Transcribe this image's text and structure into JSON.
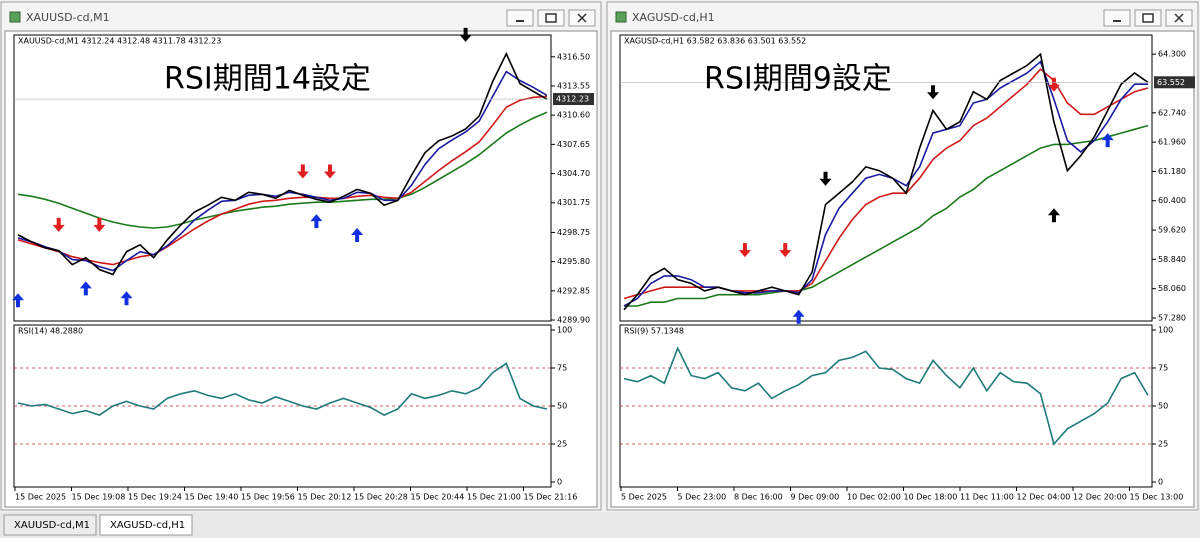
{
  "windows": [
    {
      "title": "XAUUSD-cd,M1",
      "header": "XAUUSD-cd,M1  4312.24 4312.48 4311.78 4312.23",
      "overlay": "RSI期間14設定",
      "price": {
        "ylim": [
          4289.8,
          4318.7
        ],
        "yticks": [
          {
            "value": 4316.5,
            "label": "4316.50"
          },
          {
            "value": 4313.55,
            "label": "4313.55"
          },
          {
            "value": 4310.6,
            "label": "4310.60"
          },
          {
            "value": 4307.65,
            "label": "4307.65"
          },
          {
            "value": 4304.7,
            "label": "4304.70"
          },
          {
            "value": 4301.75,
            "label": "4301.75"
          },
          {
            "value": 4298.75,
            "label": "4298.75"
          },
          {
            "value": 4295.8,
            "label": "4295.80"
          },
          {
            "value": 4292.85,
            "label": "4292.85"
          },
          {
            "value": 4289.9,
            "label": "4289.90"
          }
        ],
        "current": {
          "value": 4312.23,
          "label": "4312.23"
        },
        "series": [
          {
            "color": "#1a7a1a",
            "values": [
              4302.6,
              4302.4,
              4302.1,
              4301.7,
              4301.2,
              4300.7,
              4300.2,
              4299.8,
              4299.5,
              4299.3,
              4299.2,
              4299.3,
              4299.6,
              4300.0,
              4300.3,
              4300.6,
              4300.9,
              4301.1,
              4301.3,
              4301.4,
              4301.6,
              4301.7,
              4301.8,
              4301.8,
              4301.9,
              4302.0,
              4302.1,
              4302.1,
              4302.2,
              4302.6,
              4303.3,
              4304.1,
              4304.9,
              4305.7,
              4306.6,
              4307.7,
              4308.8,
              4309.6,
              4310.3,
              4310.9
            ]
          },
          {
            "color": "#d01818",
            "values": [
              4298.0,
              4297.6,
              4297.2,
              4296.8,
              4296.3,
              4296.0,
              4295.7,
              4295.5,
              4295.9,
              4296.3,
              4296.5,
              4297.3,
              4298.2,
              4299.1,
              4299.9,
              4300.6,
              4301.1,
              4301.6,
              4301.9,
              4302.0,
              4302.2,
              4302.3,
              4302.3,
              4302.2,
              4302.2,
              4302.4,
              4302.5,
              4302.3,
              4302.2,
              4302.8,
              4303.9,
              4305.0,
              4306.0,
              4306.9,
              4307.9,
              4309.6,
              4311.4,
              4312.1,
              4312.4,
              4312.5
            ]
          },
          {
            "color": "#1a1aa0",
            "values": [
              4298.2,
              4297.8,
              4297.3,
              4296.9,
              4296.0,
              4295.9,
              4295.3,
              4294.9,
              4295.9,
              4296.8,
              4296.5,
              4297.4,
              4298.6,
              4300.0,
              4301.0,
              4301.9,
              4302.0,
              4302.5,
              4302.6,
              4302.4,
              4302.8,
              4302.6,
              4302.3,
              4302.0,
              4302.2,
              4302.8,
              4302.7,
              4302.0,
              4302.0,
              4303.5,
              4305.6,
              4307.2,
              4308.1,
              4308.9,
              4310.0,
              4312.5,
              4315.0,
              4314.1,
              4313.4,
              4312.6
            ]
          },
          {
            "color": "#000000",
            "values": [
              4298.5,
              4297.8,
              4297.2,
              4296.9,
              4295.5,
              4296.2,
              4295.0,
              4294.5,
              4296.8,
              4297.5,
              4296.2,
              4298.0,
              4299.5,
              4300.8,
              4301.5,
              4302.3,
              4302.0,
              4302.8,
              4302.6,
              4302.2,
              4303.0,
              4302.5,
              4302.1,
              4301.8,
              4302.4,
              4303.1,
              4302.7,
              4301.5,
              4302.0,
              4304.5,
              4306.8,
              4308.0,
              4308.5,
              4309.2,
              4310.5,
              4314.0,
              4316.8,
              4313.8,
              4313.0,
              4312.2
            ]
          }
        ],
        "arrows": [
          {
            "i": 3,
            "y": 4298.8,
            "dir": "down",
            "color": "#e02020"
          },
          {
            "i": 6,
            "y": 4298.8,
            "dir": "down",
            "color": "#e02020"
          },
          {
            "i": 21,
            "y": 4304.2,
            "dir": "down",
            "color": "#e02020"
          },
          {
            "i": 23,
            "y": 4304.2,
            "dir": "down",
            "color": "#e02020"
          },
          {
            "i": 33,
            "y": 4318.0,
            "dir": "down",
            "color": "#000000"
          },
          {
            "i": 0,
            "y": 4292.6,
            "dir": "up",
            "color": "#1030e0"
          },
          {
            "i": 5,
            "y": 4293.8,
            "dir": "up",
            "color": "#1030e0"
          },
          {
            "i": 8,
            "y": 4292.8,
            "dir": "up",
            "color": "#1030e0"
          },
          {
            "i": 22,
            "y": 4300.6,
            "dir": "up",
            "color": "#1030e0"
          },
          {
            "i": 25,
            "y": 4299.2,
            "dir": "up",
            "color": "#1030e0"
          }
        ]
      },
      "rsi": {
        "label": "RSI(14) 48.2880",
        "color": "#1f7a7a",
        "ylim": [
          0,
          100
        ],
        "yticks": [
          0,
          25,
          50,
          75,
          100
        ],
        "values": [
          52,
          50,
          51,
          48,
          45,
          47,
          44,
          50,
          53,
          50,
          48,
          55,
          58,
          60,
          57,
          55,
          58,
          54,
          52,
          56,
          53,
          50,
          48,
          52,
          55,
          52,
          49,
          44,
          48,
          58,
          55,
          57,
          60,
          58,
          62,
          72,
          78,
          55,
          50,
          48
        ]
      },
      "xlabels": [
        "15 Dec 2025",
        "15 Dec 19:08",
        "15 Dec 19:24",
        "15 Dec 19:40",
        "15 Dec 19:56",
        "15 Dec 20:12",
        "15 Dec 20:28",
        "15 Dec 20:44",
        "15 Dec 21:00",
        "15 Dec 21:16"
      ]
    },
    {
      "title": "XAGUSD-cd,H1",
      "header": "XAGUSD-cd,H1  63.582 63.836 63.501 63.552",
      "overlay": "RSI期間9設定",
      "price": {
        "ylim": [
          57.2,
          64.81
        ],
        "yticks": [
          {
            "value": 64.3,
            "label": "64.300"
          },
          {
            "value": 62.74,
            "label": "62.740"
          },
          {
            "value": 61.96,
            "label": "61.960"
          },
          {
            "value": 61.18,
            "label": "61.180"
          },
          {
            "value": 60.4,
            "label": "60.400"
          },
          {
            "value": 59.62,
            "label": "59.620"
          },
          {
            "value": 58.84,
            "label": "58.840"
          },
          {
            "value": 58.06,
            "label": "58.060"
          },
          {
            "value": 57.28,
            "label": "57.280"
          }
        ],
        "current": {
          "value": 63.552,
          "label": "63.552"
        },
        "series": [
          {
            "color": "#1a7a1a",
            "values": [
              57.6,
              57.6,
              57.7,
              57.7,
              57.8,
              57.8,
              57.8,
              57.9,
              57.9,
              57.9,
              57.9,
              57.95,
              58.0,
              58.0,
              58.1,
              58.3,
              58.5,
              58.7,
              58.9,
              59.1,
              59.3,
              59.5,
              59.7,
              60.0,
              60.2,
              60.5,
              60.7,
              61.0,
              61.2,
              61.4,
              61.6,
              61.8,
              61.9,
              61.9,
              61.95,
              62.0,
              62.1,
              62.2,
              62.3,
              62.4
            ]
          },
          {
            "color": "#d01818",
            "values": [
              57.8,
              57.9,
              58.0,
              58.1,
              58.1,
              58.1,
              58.1,
              58.1,
              58.0,
              58.0,
              58.0,
              58.0,
              58.0,
              58.0,
              58.2,
              58.8,
              59.4,
              59.9,
              60.3,
              60.5,
              60.6,
              60.6,
              61.0,
              61.5,
              61.8,
              62.0,
              62.4,
              62.6,
              62.9,
              63.2,
              63.5,
              63.9,
              63.6,
              63.0,
              62.7,
              62.7,
              62.9,
              63.1,
              63.3,
              63.4
            ]
          },
          {
            "color": "#1a1aa0",
            "values": [
              57.6,
              57.8,
              58.2,
              58.4,
              58.4,
              58.3,
              58.1,
              58.1,
              58.0,
              57.95,
              57.95,
              58.0,
              58.0,
              57.95,
              58.3,
              59.5,
              60.2,
              60.6,
              61.0,
              61.1,
              61.0,
              60.8,
              61.3,
              62.2,
              62.3,
              62.4,
              63.0,
              63.1,
              63.4,
              63.6,
              63.8,
              64.1,
              63.1,
              62.0,
              61.7,
              62.0,
              62.5,
              63.1,
              63.5,
              63.5
            ]
          },
          {
            "color": "#000000",
            "values": [
              57.5,
              57.9,
              58.4,
              58.6,
              58.3,
              58.2,
              58.0,
              58.1,
              58.0,
              57.9,
              58.0,
              58.1,
              58.0,
              57.9,
              58.5,
              60.3,
              60.6,
              60.9,
              61.3,
              61.2,
              61.0,
              60.6,
              61.8,
              62.8,
              62.3,
              62.5,
              63.3,
              63.1,
              63.6,
              63.8,
              64.0,
              64.3,
              62.5,
              61.2,
              61.6,
              62.1,
              62.8,
              63.5,
              63.8,
              63.55
            ]
          }
        ],
        "arrows": [
          {
            "i": 9,
            "y": 58.9,
            "dir": "down",
            "color": "#e02020"
          },
          {
            "i": 12,
            "y": 58.9,
            "dir": "down",
            "color": "#e02020"
          },
          {
            "i": 32,
            "y": 63.3,
            "dir": "down",
            "color": "#e02020"
          },
          {
            "i": 15,
            "y": 60.8,
            "dir": "down",
            "color": "#000000"
          },
          {
            "i": 23,
            "y": 63.1,
            "dir": "down",
            "color": "#000000"
          },
          {
            "i": 32,
            "y": 60.2,
            "dir": "up",
            "color": "#000000"
          },
          {
            "i": 13,
            "y": 57.5,
            "dir": "up",
            "color": "#1030e0"
          },
          {
            "i": 36,
            "y": 62.2,
            "dir": "up",
            "color": "#1030e0"
          }
        ]
      },
      "rsi": {
        "label": "RSI(9) 57.1348",
        "color": "#1f7a7a",
        "ylim": [
          0,
          100
        ],
        "yticks": [
          0,
          25,
          50,
          75,
          100
        ],
        "values": [
          68,
          66,
          70,
          65,
          88,
          70,
          68,
          72,
          62,
          60,
          65,
          55,
          60,
          64,
          70,
          72,
          80,
          82,
          86,
          75,
          74,
          68,
          65,
          80,
          70,
          62,
          75,
          60,
          72,
          66,
          65,
          58,
          25,
          35,
          40,
          45,
          52,
          68,
          72,
          57
        ]
      },
      "xlabels": [
        "5 Dec 2025",
        "5 Dec 23:00",
        "8 Dec 16:00",
        "9 Dec 09:00",
        "10 Dec 02:00",
        "10 Dec 18:00",
        "11 Dec 11:00",
        "12 Dec 04:00",
        "12 Dec 20:00",
        "15 Dec 13:00"
      ]
    }
  ],
  "tabs": [
    "XAUUSD-cd,M1",
    "XAGUSD-cd,H1"
  ]
}
